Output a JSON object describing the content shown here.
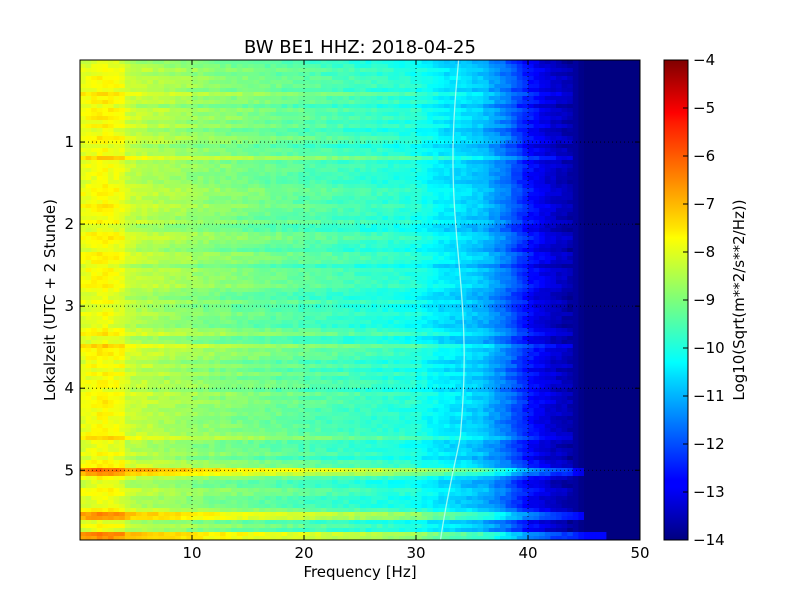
{
  "chart_data": {
    "type": "heatmap",
    "title": "BW BE1 HHZ: 2018-04-25",
    "xlabel": "Frequency [Hz]",
    "ylabel": "Lokalzeit (UTC + 2 Stunde)",
    "xlim": [
      0,
      50
    ],
    "ylim": [
      5.85,
      0
    ],
    "x_ticks": [
      10,
      20,
      30,
      40,
      50
    ],
    "y_ticks": [
      1,
      2,
      3,
      4,
      5
    ],
    "grid": true,
    "colormap": "jet",
    "colorbar": {
      "label": "Log10(Sqrt(m**2/s**2/Hz))",
      "range": [
        -14,
        -4
      ],
      "ticks": [
        -4,
        -5,
        -6,
        -7,
        -8,
        -9,
        -10,
        -11,
        -12,
        -13,
        -14
      ]
    },
    "spectral_profile": {
      "frequency_hz": [
        0,
        2,
        5,
        10,
        15,
        20,
        25,
        30,
        32,
        34,
        36,
        38,
        40,
        42,
        44,
        45,
        46,
        50
      ],
      "log10_psd": [
        -8.3,
        -8.0,
        -8.4,
        -8.8,
        -9.1,
        -9.4,
        -9.7,
        -10.0,
        -10.4,
        -10.6,
        -10.9,
        -11.6,
        -12.6,
        -13.2,
        -13.6,
        -14,
        -14,
        -14
      ]
    },
    "notable_features": [
      {
        "time_h": 5.02,
        "note": "broadband horizontal band up to ~45 Hz"
      },
      {
        "time_h": 5.55,
        "note": "strong broadband horizontal band"
      },
      {
        "time_h": 5.8,
        "note": "strong broadband horizontal band"
      },
      {
        "frequency_hz": 33.5,
        "note": "narrow spectral line drifting in frequency"
      }
    ]
  }
}
